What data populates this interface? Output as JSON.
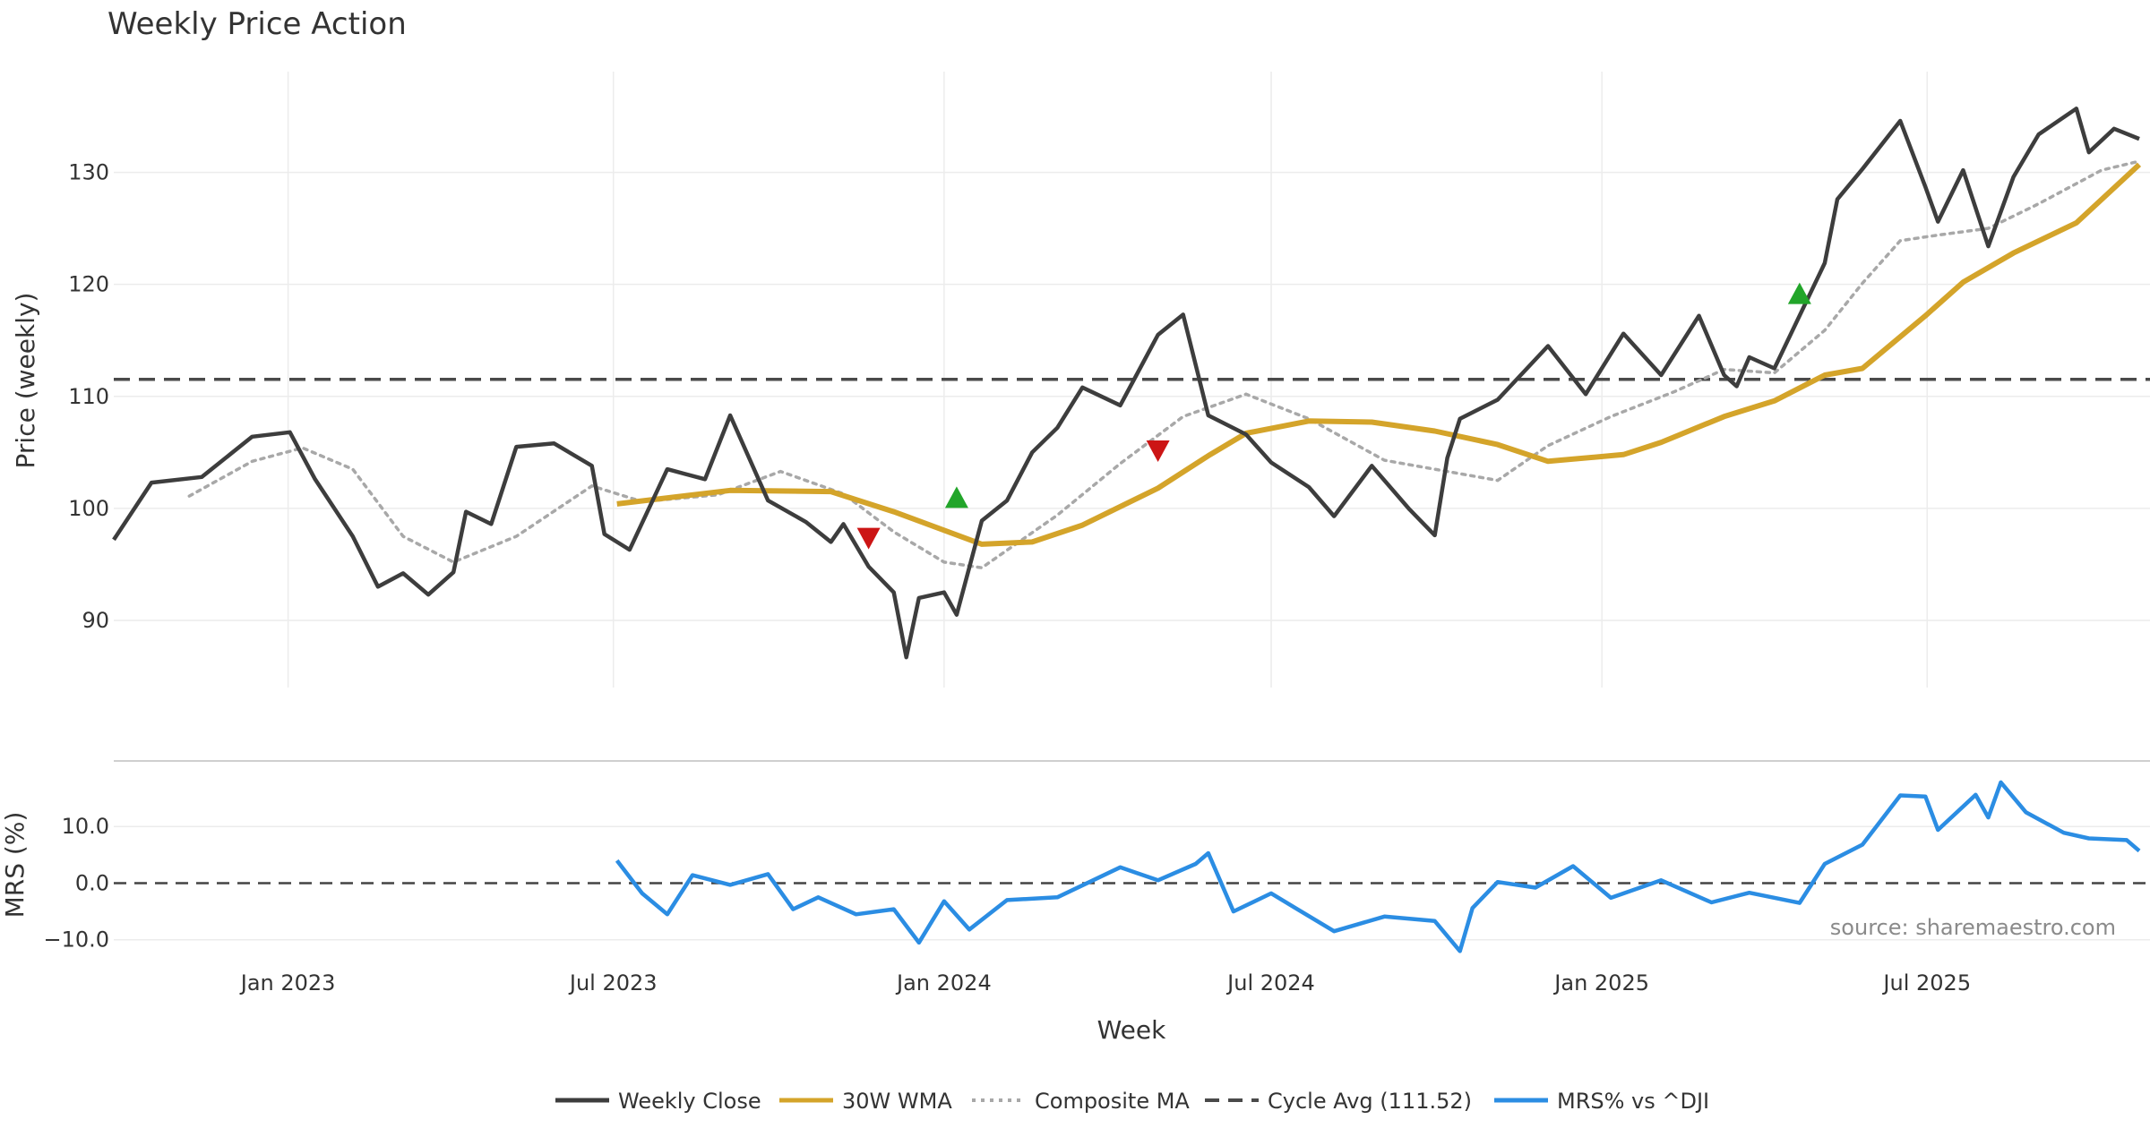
{
  "chart_data": {
    "type": "line",
    "title": "Weekly Price Action",
    "xlabel": "Week",
    "x_range": [
      "2022-09-26",
      "2025-10-27"
    ],
    "x_ticks": [
      {
        "date": "2023-01-01",
        "label": "Jan 2023"
      },
      {
        "date": "2023-07-01",
        "label": "Jul 2023"
      },
      {
        "date": "2024-01-01",
        "label": "Jan 2024"
      },
      {
        "date": "2024-07-01",
        "label": "Jul 2024"
      },
      {
        "date": "2025-01-01",
        "label": "Jan 2025"
      },
      {
        "date": "2025-07-01",
        "label": "Jul 2025"
      }
    ],
    "price_panel": {
      "ylabel": "Price (weekly)",
      "ylim": [
        84,
        139
      ],
      "yticks": [
        90,
        100,
        110,
        120,
        130
      ],
      "series": [
        {
          "name": "Weekly Close",
          "color": "#3d3d3d",
          "points": [
            [
              "2022-09-26",
              97.2
            ],
            [
              "2022-10-17",
              102.3
            ],
            [
              "2022-11-14",
              102.8
            ],
            [
              "2022-12-12",
              106.4
            ],
            [
              "2023-01-02",
              106.8
            ],
            [
              "2023-01-16",
              102.6
            ],
            [
              "2023-02-06",
              97.5
            ],
            [
              "2023-02-20",
              93.0
            ],
            [
              "2023-03-06",
              94.2
            ],
            [
              "2023-03-20",
              92.3
            ],
            [
              "2023-04-03",
              94.3
            ],
            [
              "2023-04-10",
              99.7
            ],
            [
              "2023-04-24",
              98.6
            ],
            [
              "2023-05-08",
              105.5
            ],
            [
              "2023-05-29",
              105.8
            ],
            [
              "2023-06-19",
              103.8
            ],
            [
              "2023-06-26",
              97.7
            ],
            [
              "2023-07-10",
              96.3
            ],
            [
              "2023-07-31",
              103.5
            ],
            [
              "2023-08-21",
              102.6
            ],
            [
              "2023-09-04",
              108.3
            ],
            [
              "2023-09-25",
              100.7
            ],
            [
              "2023-10-16",
              98.8
            ],
            [
              "2023-10-30",
              97.0
            ],
            [
              "2023-11-06",
              98.6
            ],
            [
              "2023-11-20",
              94.8
            ],
            [
              "2023-12-04",
              92.5
            ],
            [
              "2023-12-11",
              86.7
            ],
            [
              "2023-12-18",
              92.0
            ],
            [
              "2024-01-01",
              92.5
            ],
            [
              "2024-01-08",
              90.5
            ],
            [
              "2024-01-22",
              98.9
            ],
            [
              "2024-02-05",
              100.7
            ],
            [
              "2024-02-19",
              105.0
            ],
            [
              "2024-03-04",
              107.2
            ],
            [
              "2024-03-18",
              110.8
            ],
            [
              "2024-04-08",
              109.2
            ],
            [
              "2024-04-29",
              115.5
            ],
            [
              "2024-05-13",
              117.3
            ],
            [
              "2024-05-27",
              108.3
            ],
            [
              "2024-06-17",
              106.6
            ],
            [
              "2024-07-01",
              104.1
            ],
            [
              "2024-07-22",
              101.9
            ],
            [
              "2024-08-05",
              99.3
            ],
            [
              "2024-08-26",
              103.8
            ],
            [
              "2024-09-16",
              99.9
            ],
            [
              "2024-09-30",
              97.6
            ],
            [
              "2024-10-07",
              104.5
            ],
            [
              "2024-10-14",
              108.0
            ],
            [
              "2024-11-04",
              109.7
            ],
            [
              "2024-12-02",
              114.5
            ],
            [
              "2024-12-23",
              110.2
            ],
            [
              "2025-01-13",
              115.6
            ],
            [
              "2025-02-03",
              111.9
            ],
            [
              "2025-02-24",
              117.2
            ],
            [
              "2025-03-10",
              111.9
            ],
            [
              "2025-03-17",
              110.9
            ],
            [
              "2025-03-24",
              113.5
            ],
            [
              "2025-04-07",
              112.5
            ],
            [
              "2025-05-05",
              121.9
            ],
            [
              "2025-05-12",
              127.6
            ],
            [
              "2025-05-26",
              130.3
            ],
            [
              "2025-06-16",
              134.6
            ],
            [
              "2025-06-30",
              128.7
            ],
            [
              "2025-07-07",
              125.6
            ],
            [
              "2025-07-21",
              130.2
            ],
            [
              "2025-08-04",
              123.4
            ],
            [
              "2025-08-18",
              129.6
            ],
            [
              "2025-09-01",
              133.4
            ],
            [
              "2025-09-22",
              135.7
            ],
            [
              "2025-09-29",
              131.8
            ],
            [
              "2025-10-13",
              133.9
            ],
            [
              "2025-10-27",
              133.0
            ]
          ]
        },
        {
          "name": "30W WMA",
          "color": "#d4a42a",
          "points": [
            [
              "2023-07-03",
              100.4
            ],
            [
              "2023-09-04",
              101.6
            ],
            [
              "2023-10-30",
              101.5
            ],
            [
              "2023-12-04",
              99.7
            ],
            [
              "2024-01-22",
              96.8
            ],
            [
              "2024-02-19",
              97.0
            ],
            [
              "2024-03-18",
              98.5
            ],
            [
              "2024-04-29",
              101.8
            ],
            [
              "2024-05-27",
              104.7
            ],
            [
              "2024-06-17",
              106.7
            ],
            [
              "2024-07-22",
              107.8
            ],
            [
              "2024-08-26",
              107.7
            ],
            [
              "2024-09-30",
              106.9
            ],
            [
              "2024-11-04",
              105.7
            ],
            [
              "2024-12-02",
              104.2
            ],
            [
              "2025-01-13",
              104.8
            ],
            [
              "2025-02-03",
              105.9
            ],
            [
              "2025-03-10",
              108.2
            ],
            [
              "2025-04-07",
              109.6
            ],
            [
              "2025-05-05",
              111.9
            ],
            [
              "2025-05-26",
              112.5
            ],
            [
              "2025-06-30",
              117.2
            ],
            [
              "2025-07-21",
              120.2
            ],
            [
              "2025-08-18",
              122.8
            ],
            [
              "2025-09-22",
              125.5
            ],
            [
              "2025-10-27",
              130.7
            ]
          ]
        },
        {
          "name": "Composite MA",
          "color": "#a8a8a8",
          "points": [
            [
              "2022-11-07",
              101.1
            ],
            [
              "2022-12-12",
              104.2
            ],
            [
              "2023-01-09",
              105.4
            ],
            [
              "2023-02-06",
              103.5
            ],
            [
              "2023-03-06",
              97.5
            ],
            [
              "2023-04-03",
              95.2
            ],
            [
              "2023-05-08",
              97.5
            ],
            [
              "2023-06-19",
              102.0
            ],
            [
              "2023-07-17",
              100.6
            ],
            [
              "2023-08-28",
              101.2
            ],
            [
              "2023-10-02",
              103.3
            ],
            [
              "2023-11-06",
              101.3
            ],
            [
              "2023-12-04",
              97.9
            ],
            [
              "2024-01-01",
              95.2
            ],
            [
              "2024-01-22",
              94.7
            ],
            [
              "2024-03-04",
              99.4
            ],
            [
              "2024-04-08",
              104.0
            ],
            [
              "2024-05-13",
              108.2
            ],
            [
              "2024-06-17",
              110.2
            ],
            [
              "2024-07-22",
              108.0
            ],
            [
              "2024-09-02",
              104.3
            ],
            [
              "2024-10-07",
              103.3
            ],
            [
              "2024-11-04",
              102.5
            ],
            [
              "2024-12-02",
              105.6
            ],
            [
              "2025-01-06",
              108.2
            ],
            [
              "2025-02-10",
              110.4
            ],
            [
              "2025-03-10",
              112.4
            ],
            [
              "2025-04-07",
              112.1
            ],
            [
              "2025-05-05",
              115.9
            ],
            [
              "2025-05-26",
              120.1
            ],
            [
              "2025-06-16",
              123.9
            ],
            [
              "2025-07-07",
              124.4
            ],
            [
              "2025-08-04",
              125.0
            ],
            [
              "2025-09-01",
              127.2
            ],
            [
              "2025-10-06",
              130.2
            ],
            [
              "2025-10-27",
              131.0
            ]
          ]
        },
        {
          "name": "Cycle Avg (111.52)",
          "color": "#4a4a4a",
          "value": 111.52
        }
      ],
      "signals": [
        {
          "date": "2023-11-20",
          "value": 97.3,
          "direction": "down",
          "color": "#cc1515"
        },
        {
          "date": "2024-01-08",
          "value": 101.0,
          "direction": "up",
          "color": "#22a52a"
        },
        {
          "date": "2024-04-29",
          "value": 105.1,
          "direction": "down",
          "color": "#cc1515"
        },
        {
          "date": "2025-04-21",
          "value": 119.2,
          "direction": "up",
          "color": "#22a52a"
        }
      ]
    },
    "mrs_panel": {
      "ylabel": "MRS (%)",
      "ylim": [
        -14,
        20
      ],
      "yticks": [
        10.0,
        0.0,
        -10.0
      ],
      "ytick_labels": [
        "10.0",
        "0.0",
        "−10.0"
      ],
      "zero_line": 0.0,
      "series": [
        {
          "name": "MRS% vs ^DJI",
          "color": "#2b8de3",
          "points": [
            [
              "2023-07-03",
              4.0
            ],
            [
              "2023-07-17",
              -1.8
            ],
            [
              "2023-07-31",
              -5.5
            ],
            [
              "2023-08-14",
              1.4
            ],
            [
              "2023-09-04",
              -0.3
            ],
            [
              "2023-09-25",
              1.6
            ],
            [
              "2023-10-09",
              -4.6
            ],
            [
              "2023-10-23",
              -2.5
            ],
            [
              "2023-11-13",
              -5.5
            ],
            [
              "2023-12-04",
              -4.6
            ],
            [
              "2023-12-18",
              -10.5
            ],
            [
              "2024-01-01",
              -3.2
            ],
            [
              "2024-01-15",
              -8.2
            ],
            [
              "2024-02-05",
              -3.0
            ],
            [
              "2024-03-04",
              -2.5
            ],
            [
              "2024-04-08",
              2.8
            ],
            [
              "2024-04-29",
              0.5
            ],
            [
              "2024-05-20",
              3.4
            ],
            [
              "2024-05-27",
              5.3
            ],
            [
              "2024-06-10",
              -5.0
            ],
            [
              "2024-07-01",
              -1.8
            ],
            [
              "2024-07-15",
              -4.5
            ],
            [
              "2024-08-05",
              -8.5
            ],
            [
              "2024-09-02",
              -5.9
            ],
            [
              "2024-09-30",
              -6.7
            ],
            [
              "2024-10-14",
              -12.0
            ],
            [
              "2024-10-21",
              -4.4
            ],
            [
              "2024-11-04",
              0.2
            ],
            [
              "2024-11-25",
              -0.8
            ],
            [
              "2024-12-16",
              3.0
            ],
            [
              "2025-01-06",
              -2.6
            ],
            [
              "2025-02-03",
              0.5
            ],
            [
              "2025-03-03",
              -3.4
            ],
            [
              "2025-03-24",
              -1.7
            ],
            [
              "2025-04-21",
              -3.5
            ],
            [
              "2025-05-05",
              3.4
            ],
            [
              "2025-05-26",
              6.8
            ],
            [
              "2025-06-16",
              15.5
            ],
            [
              "2025-06-30",
              15.3
            ],
            [
              "2025-07-07",
              9.4
            ],
            [
              "2025-07-28",
              15.6
            ],
            [
              "2025-08-04",
              11.6
            ],
            [
              "2025-08-11",
              17.8
            ],
            [
              "2025-08-25",
              12.5
            ],
            [
              "2025-09-15",
              8.9
            ],
            [
              "2025-09-29",
              7.9
            ],
            [
              "2025-10-20",
              7.6
            ],
            [
              "2025-10-27",
              5.7
            ]
          ]
        }
      ]
    },
    "legend": {
      "placement": "bottom-center",
      "entries": [
        {
          "label": "Weekly Close",
          "color": "#3d3d3d",
          "style": "solid"
        },
        {
          "label": "30W WMA",
          "color": "#d4a42a",
          "style": "solid"
        },
        {
          "label": "Composite MA",
          "color": "#a8a8a8",
          "style": "dotted"
        },
        {
          "label": "Cycle Avg (111.52)",
          "color": "#4a4a4a",
          "style": "dashed"
        },
        {
          "label": "MRS% vs ^DJI",
          "color": "#2b8de3",
          "style": "solid"
        }
      ]
    },
    "annotations": [
      {
        "text": "source: sharemaestro.com",
        "placement": "bottom-right of MRS panel"
      }
    ],
    "grid": true
  }
}
